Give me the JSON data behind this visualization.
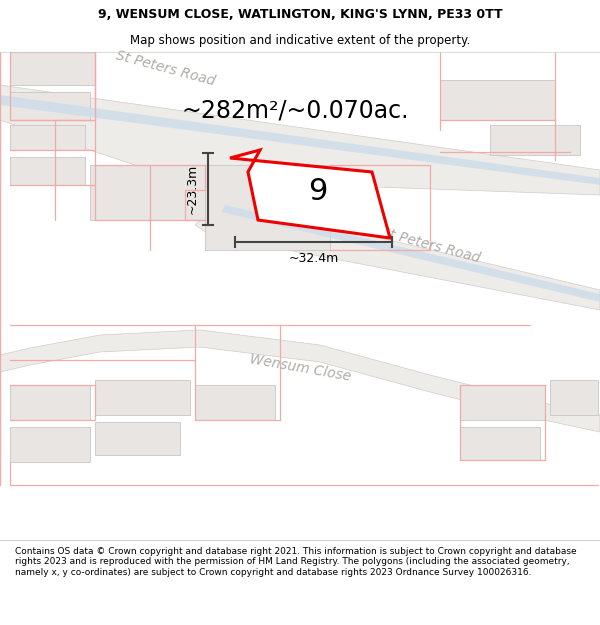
{
  "title_line1": "9, WENSUM CLOSE, WATLINGTON, KING'S LYNN, PE33 0TT",
  "title_line2": "Map shows position and indicative extent of the property.",
  "area_text": "~282m²/~0.070ac.",
  "number_label": "9",
  "dim_width": "~32.4m",
  "dim_height": "~23.3m",
  "road_label_upper": "St Peters Road",
  "road_label_lower": "St Peters Road",
  "road_label_wensum": "Wensum Close",
  "footer_text": "Contains OS data © Crown copyright and database right 2021. This information is subject to Crown copyright and database rights 2023 and is reproduced with the permission of HM Land Registry. The polygons (including the associated geometry, namely x, y co-ordinates) are subject to Crown copyright and database rights 2023 Ordnance Survey 100026316.",
  "map_bg": "#f7f6f5",
  "road_fill": "#eeece9",
  "road_edge": "#d0ccc8",
  "road_stripe": "#ccdcea",
  "plot_outline": "#ee0000",
  "dim_line_color": "#444444",
  "building_fill": "#e8e5e2",
  "building_edge": "#cac7c3",
  "pink_line": "#f0aaaa",
  "road_text_color": "#b0acaa",
  "title_fontsize": 9.0,
  "subtitle_fontsize": 8.5,
  "area_fontsize": 17,
  "label_fontsize": 22,
  "footer_fontsize": 6.5,
  "road_label_fontsize": 10,
  "dim_fontsize": 9
}
